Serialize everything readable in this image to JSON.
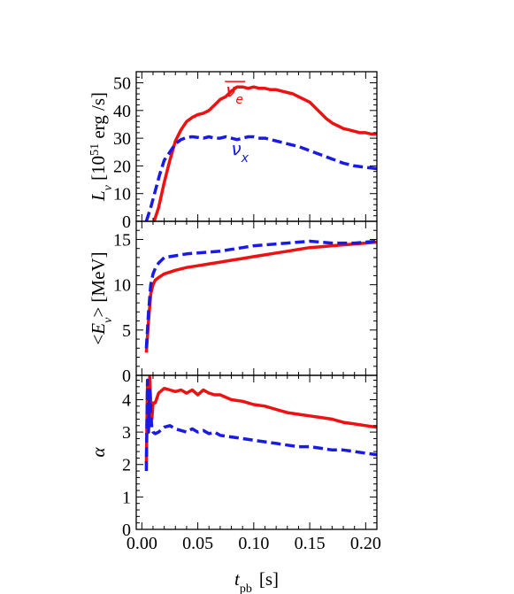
{
  "chart_data": {
    "type": "line",
    "xlabel": {
      "main": "t",
      "sub": "pb",
      "unit": "[s]"
    },
    "xlim": [
      -0.005,
      0.21
    ],
    "xticks": [
      0.0,
      0.05,
      0.1,
      0.15,
      0.2
    ],
    "xtick_labels": [
      "0.00",
      "0.05",
      "0.10",
      "0.15",
      "0.20"
    ],
    "colors": {
      "nu_e_bar": "#ee1111",
      "nu_x": "#1a1ae6"
    },
    "panels": [
      {
        "id": "luminosity",
        "ylabel": {
          "main": "L",
          "sub": "ν",
          "rest": " [10",
          "sup": "51",
          "unit": " erg /s]"
        },
        "ylim": [
          0,
          54
        ],
        "yticks": [
          0,
          10,
          20,
          30,
          40,
          50
        ],
        "ytick_labels": [
          "0",
          "10",
          "20",
          "30",
          "40",
          "50"
        ],
        "annotations": [
          {
            "series": "nu_e_bar",
            "text": "ν",
            "sub": "e",
            "overline": true,
            "x": 0.075,
            "y": 45
          },
          {
            "series": "nu_x",
            "text": "ν",
            "sub": "x",
            "x": 0.08,
            "y": 24
          }
        ],
        "series": [
          {
            "key": "nu_e_bar",
            "style": "solid",
            "x": [
              0.011,
              0.015,
              0.02,
              0.025,
              0.03,
              0.035,
              0.04,
              0.045,
              0.05,
              0.055,
              0.06,
              0.065,
              0.07,
              0.075,
              0.08,
              0.085,
              0.09,
              0.095,
              0.1,
              0.105,
              0.11,
              0.115,
              0.12,
              0.125,
              0.13,
              0.135,
              0.14,
              0.145,
              0.15,
              0.155,
              0.16,
              0.165,
              0.17,
              0.175,
              0.18,
              0.185,
              0.19,
              0.195,
              0.2,
              0.205,
              0.21
            ],
            "y": [
              0,
              5,
              14,
              22,
              29,
              33,
              36,
              37.5,
              38.5,
              39,
              40,
              42,
              44,
              45,
              47,
              48.5,
              48.5,
              48,
              48.5,
              48,
              48,
              47.5,
              47.5,
              47,
              46.5,
              46,
              45,
              44,
              43,
              41,
              39,
              37,
              35.5,
              34.5,
              33.5,
              33,
              32.5,
              32,
              32,
              31.5,
              31.5
            ]
          },
          {
            "key": "nu_x",
            "style": "dashed",
            "x": [
              0.004,
              0.008,
              0.012,
              0.016,
              0.02,
              0.025,
              0.03,
              0.035,
              0.04,
              0.045,
              0.05,
              0.055,
              0.06,
              0.065,
              0.07,
              0.075,
              0.08,
              0.085,
              0.09,
              0.095,
              0.1,
              0.105,
              0.11,
              0.115,
              0.12,
              0.13,
              0.14,
              0.15,
              0.16,
              0.17,
              0.18,
              0.19,
              0.2,
              0.21
            ],
            "y": [
              0,
              5,
              11,
              17,
              22,
              25,
              28,
              29.5,
              30.3,
              30.5,
              30.3,
              30,
              30.5,
              30,
              30,
              30.5,
              30,
              29.5,
              30,
              30.5,
              30.5,
              30,
              30,
              29.5,
              29,
              28,
              27,
              25.5,
              24,
              22.5,
              21,
              20,
              19.5,
              19
            ]
          }
        ]
      },
      {
        "id": "mean_energy",
        "ylabel": {
          "main": "<E",
          "sub": "ν",
          "rest": "> [MeV]"
        },
        "ylim": [
          0,
          17
        ],
        "yticks": [
          0,
          5,
          10,
          15
        ],
        "ytick_labels": [
          "0",
          "5",
          "10",
          "15"
        ],
        "series": [
          {
            "key": "nu_e_bar",
            "style": "solid",
            "x": [
              0.004,
              0.006,
              0.008,
              0.01,
              0.012,
              0.015,
              0.02,
              0.03,
              0.04,
              0.05,
              0.06,
              0.07,
              0.08,
              0.09,
              0.1,
              0.11,
              0.12,
              0.13,
              0.14,
              0.15,
              0.16,
              0.17,
              0.18,
              0.19,
              0.2,
              0.21
            ],
            "y": [
              2.5,
              6,
              9,
              10,
              10.5,
              10.8,
              11.2,
              11.6,
              11.9,
              12.1,
              12.3,
              12.5,
              12.7,
              12.9,
              13.1,
              13.3,
              13.5,
              13.7,
              13.9,
              14.1,
              14.2,
              14.3,
              14.4,
              14.5,
              14.6,
              14.7
            ]
          },
          {
            "key": "nu_x",
            "style": "dashed",
            "x": [
              0.004,
              0.006,
              0.008,
              0.01,
              0.012,
              0.015,
              0.02,
              0.03,
              0.04,
              0.05,
              0.06,
              0.07,
              0.08,
              0.09,
              0.1,
              0.11,
              0.12,
              0.13,
              0.14,
              0.15,
              0.16,
              0.17,
              0.18,
              0.19,
              0.2,
              0.21
            ],
            "y": [
              3,
              7,
              10,
              11.2,
              11.8,
              12.4,
              13,
              13.2,
              13.4,
              13.5,
              13.6,
              13.7,
              13.9,
              14.1,
              14.3,
              14.4,
              14.5,
              14.6,
              14.7,
              14.8,
              14.7,
              14.6,
              14.6,
              14.6,
              14.7,
              14.8
            ]
          }
        ]
      },
      {
        "id": "alpha",
        "ylabel": {
          "main": "α"
        },
        "ylim": [
          0,
          4.75
        ],
        "yticks": [
          0,
          1,
          2,
          3,
          4
        ],
        "ytick_labels": [
          "0",
          "1",
          "2",
          "3",
          "4"
        ],
        "series": [
          {
            "key": "nu_e_bar",
            "style": "solid",
            "x": [
              0.004,
              0.005,
              0.006,
              0.007,
              0.008,
              0.009,
              0.01,
              0.012,
              0.015,
              0.02,
              0.025,
              0.03,
              0.035,
              0.04,
              0.045,
              0.05,
              0.055,
              0.06,
              0.065,
              0.07,
              0.08,
              0.09,
              0.1,
              0.11,
              0.12,
              0.13,
              0.14,
              0.15,
              0.16,
              0.17,
              0.18,
              0.19,
              0.2,
              0.21
            ],
            "y": [
              2.0,
              4.5,
              3.4,
              4.7,
              3.9,
              3.4,
              3.9,
              3.9,
              4.2,
              4.35,
              4.3,
              4.25,
              4.3,
              4.2,
              4.3,
              4.15,
              4.3,
              4.2,
              4.15,
              4.15,
              4.0,
              3.95,
              3.85,
              3.8,
              3.7,
              3.6,
              3.55,
              3.5,
              3.45,
              3.4,
              3.3,
              3.25,
              3.2,
              3.15
            ]
          },
          {
            "key": "nu_x",
            "style": "dashed",
            "x": [
              0.004,
              0.005,
              0.006,
              0.007,
              0.008,
              0.009,
              0.01,
              0.012,
              0.015,
              0.02,
              0.025,
              0.03,
              0.035,
              0.04,
              0.045,
              0.05,
              0.055,
              0.06,
              0.065,
              0.07,
              0.08,
              0.09,
              0.1,
              0.11,
              0.12,
              0.13,
              0.14,
              0.15,
              0.16,
              0.17,
              0.18,
              0.19,
              0.2,
              0.21
            ],
            "y": [
              1.8,
              4.6,
              3.0,
              4.3,
              3.6,
              3.1,
              3.0,
              2.95,
              3.0,
              3.15,
              3.2,
              3.1,
              3.05,
              3.0,
              3.1,
              3.0,
              3.05,
              2.95,
              3.0,
              2.9,
              2.85,
              2.8,
              2.75,
              2.7,
              2.65,
              2.6,
              2.55,
              2.55,
              2.5,
              2.45,
              2.45,
              2.4,
              2.35,
              2.3
            ]
          }
        ]
      }
    ]
  }
}
